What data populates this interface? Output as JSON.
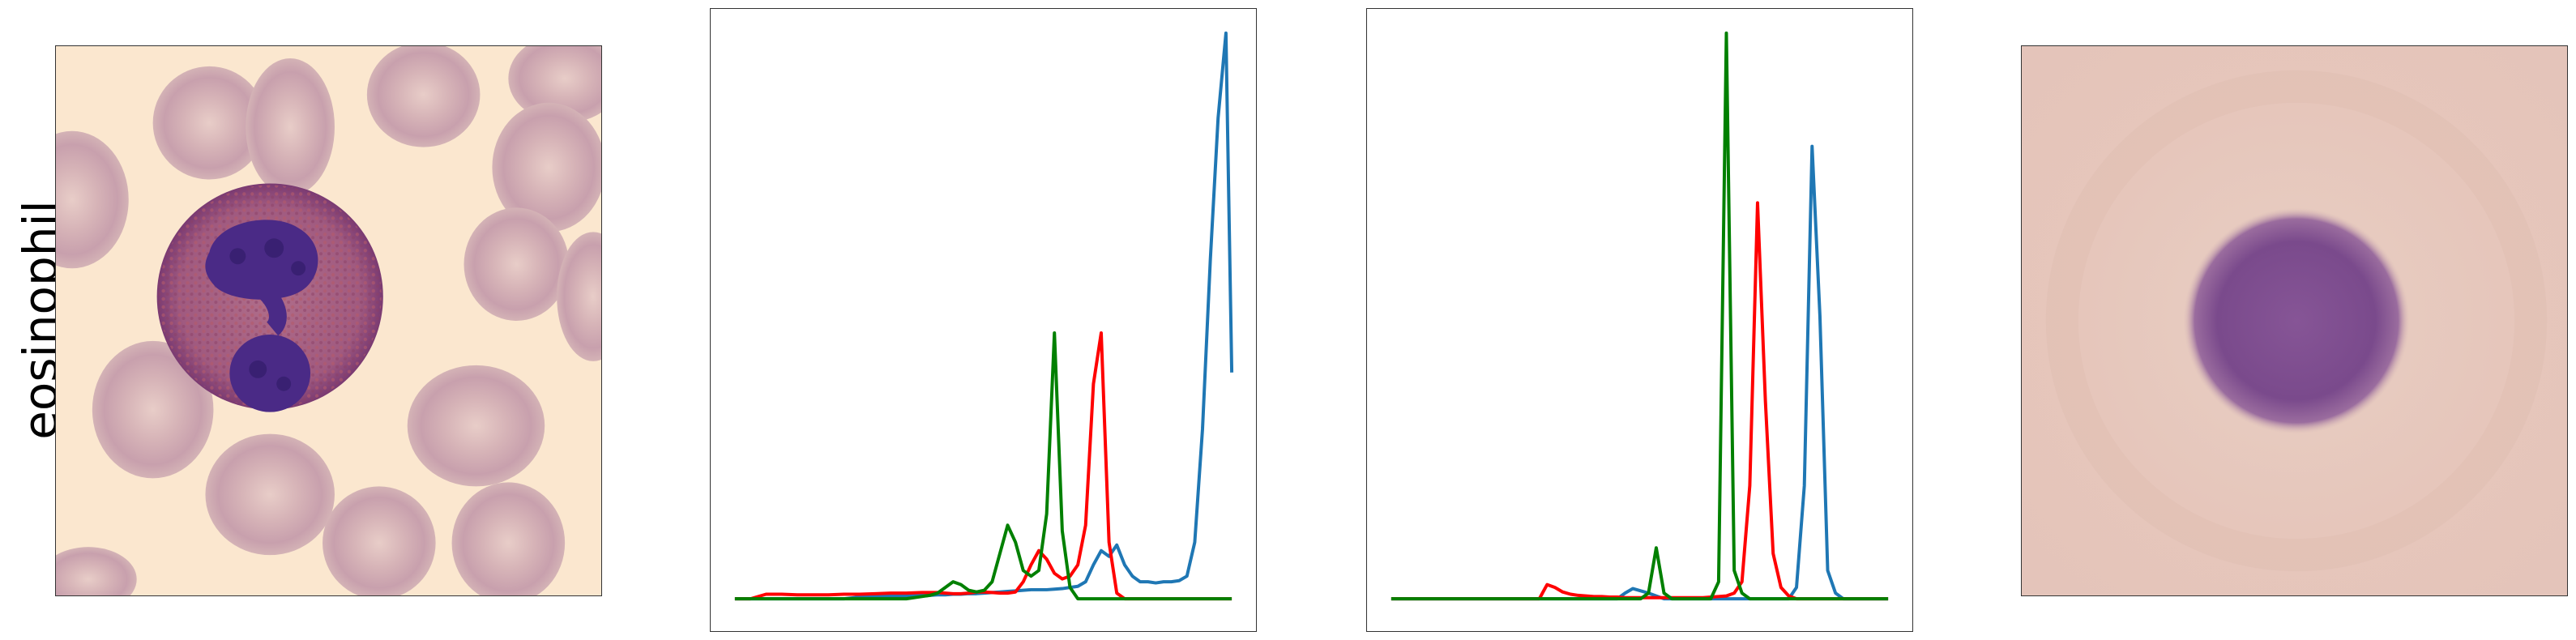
{
  "row_label": "eosinophil",
  "colors": {
    "blue": "#1f77b4",
    "red": "#ff0000",
    "green": "#008000"
  },
  "chart_data": [
    {
      "type": "line",
      "title": "",
      "xlabel": "",
      "ylabel": "",
      "x": [
        0,
        8,
        16,
        24,
        32,
        40,
        48,
        56,
        64,
        72,
        80,
        88,
        96,
        100,
        104,
        108,
        112,
        116,
        120,
        124,
        128,
        132,
        136,
        140,
        144,
        148,
        152,
        156,
        160,
        164,
        168,
        172,
        176,
        180,
        184,
        188,
        192,
        196,
        200,
        204,
        208,
        212,
        216,
        220,
        224,
        228,
        232,
        236,
        240,
        244,
        248,
        252,
        255
      ],
      "xlim": [
        0,
        255
      ],
      "ylim": [
        0,
        1
      ],
      "grid": false,
      "axes_visible": false,
      "series": [
        {
          "color": "blue",
          "values": [
            0,
            0,
            0,
            0,
            0,
            0,
            0,
            0,
            0.003,
            0.004,
            0.005,
            0.005,
            0.006,
            0.006,
            0.007,
            0.007,
            0.008,
            0.008,
            0.009,
            0.009,
            0.01,
            0.011,
            0.012,
            0.013,
            0.014,
            0.015,
            0.016,
            0.016,
            0.016,
            0.017,
            0.018,
            0.02,
            0.022,
            0.03,
            0.06,
            0.085,
            0.075,
            0.095,
            0.06,
            0.04,
            0.03,
            0.03,
            0.028,
            0.03,
            0.03,
            0.032,
            0.04,
            0.1,
            0.3,
            0.6,
            0.85,
            1.0,
            0.4
          ]
        },
        {
          "color": "red",
          "values": [
            0,
            0,
            0.008,
            0.008,
            0.007,
            0.007,
            0.007,
            0.008,
            0.008,
            0.009,
            0.01,
            0.01,
            0.011,
            0.011,
            0.011,
            0.01,
            0.009,
            0.009,
            0.01,
            0.012,
            0.012,
            0.011,
            0.01,
            0.01,
            0.012,
            0.03,
            0.06,
            0.085,
            0.07,
            0.045,
            0.035,
            0.04,
            0.06,
            0.13,
            0.38,
            0.47,
            0.1,
            0.01,
            0,
            0,
            0,
            0,
            0,
            0,
            0,
            0,
            0,
            0,
            0,
            0,
            0,
            0,
            0
          ]
        },
        {
          "color": "green",
          "values": [
            0,
            0,
            0,
            0,
            0,
            0,
            0,
            0,
            0,
            0,
            0,
            0,
            0.004,
            0.006,
            0.01,
            0.02,
            0.03,
            0.025,
            0.015,
            0.012,
            0.015,
            0.03,
            0.08,
            0.13,
            0.1,
            0.05,
            0.04,
            0.05,
            0.15,
            0.47,
            0.12,
            0.02,
            0,
            0,
            0,
            0,
            0,
            0,
            0,
            0,
            0,
            0,
            0,
            0,
            0,
            0,
            0,
            0,
            0,
            0,
            0,
            0,
            0
          ]
        }
      ]
    },
    {
      "type": "line",
      "title": "",
      "xlabel": "",
      "ylabel": "",
      "x": [
        0,
        8,
        16,
        24,
        32,
        40,
        48,
        56,
        64,
        72,
        76,
        80,
        84,
        88,
        92,
        96,
        100,
        104,
        108,
        112,
        116,
        120,
        124,
        128,
        132,
        136,
        140,
        144,
        148,
        152,
        156,
        160,
        164,
        168,
        172,
        176,
        180,
        184,
        188,
        192,
        196,
        200,
        204,
        208,
        212,
        216,
        220,
        224,
        228,
        232,
        236,
        240,
        255
      ],
      "xlim": [
        0,
        255
      ],
      "ylim": [
        0,
        1
      ],
      "grid": false,
      "axes_visible": false,
      "series": [
        {
          "color": "blue",
          "values": [
            0,
            0,
            0,
            0,
            0,
            0,
            0,
            0,
            0,
            0,
            0,
            0,
            0,
            0,
            0,
            0,
            0,
            0,
            0,
            0,
            0,
            0.01,
            0.018,
            0.014,
            0.01,
            0.005,
            0,
            0,
            0,
            0,
            0,
            0,
            0,
            0,
            0,
            0,
            0,
            0,
            0,
            0,
            0,
            0,
            0,
            0.02,
            0.2,
            0.8,
            0.5,
            0.05,
            0.01,
            0,
            0,
            0,
            0
          ]
        },
        {
          "color": "red",
          "values": [
            0,
            0,
            0,
            0,
            0,
            0,
            0,
            0,
            0,
            0,
            0,
            0.025,
            0.02,
            0.012,
            0.008,
            0.006,
            0.005,
            0.004,
            0.004,
            0.003,
            0.003,
            0.002,
            0.002,
            0.002,
            0.002,
            0.002,
            0.002,
            0.002,
            0.002,
            0.002,
            0.002,
            0.002,
            0.003,
            0.004,
            0.005,
            0.01,
            0.03,
            0.2,
            0.7,
            0.35,
            0.08,
            0.02,
            0.005,
            0,
            0,
            0,
            0,
            0,
            0,
            0,
            0,
            0,
            0
          ]
        },
        {
          "color": "green",
          "values": [
            0,
            0,
            0,
            0,
            0,
            0,
            0,
            0,
            0,
            0,
            0,
            0,
            0,
            0,
            0,
            0,
            0,
            0,
            0,
            0,
            0,
            0,
            0,
            0,
            0.01,
            0.09,
            0.01,
            0,
            0,
            0,
            0,
            0,
            0,
            0.03,
            1.0,
            0.05,
            0.01,
            0,
            0,
            0,
            0,
            0,
            0,
            0,
            0,
            0,
            0,
            0,
            0,
            0,
            0,
            0,
            0
          ]
        }
      ]
    }
  ]
}
